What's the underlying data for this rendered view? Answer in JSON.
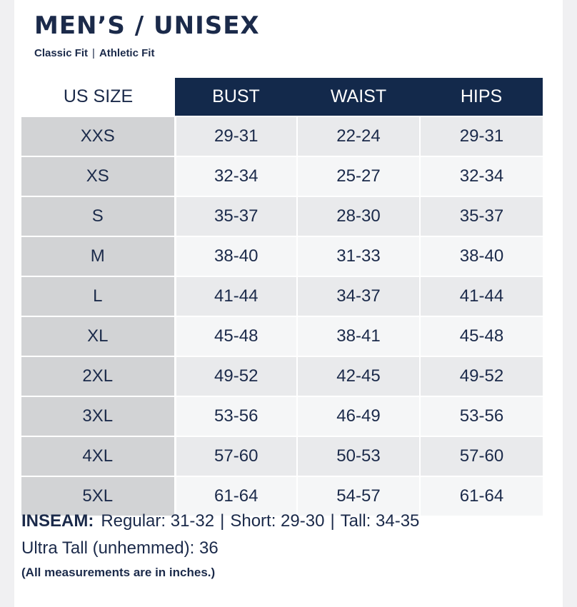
{
  "title": "MEN’S / UNISEX",
  "fits": [
    "Classic Fit",
    "Athletic Fit"
  ],
  "fit_separator": "|",
  "colors": {
    "header_navy": "#13294b",
    "text_navy": "#1b2a4a",
    "size_column": "#d2d3d5",
    "row_shade_dark": "#e9eaec",
    "row_shade_light": "#f5f6f7"
  },
  "table": {
    "headers": [
      "US SIZE",
      "BUST",
      "WAIST",
      "HIPS"
    ],
    "rows": [
      [
        "XXS",
        "29-31",
        "22-24",
        "29-31"
      ],
      [
        "XS",
        "32-34",
        "25-27",
        "32-34"
      ],
      [
        "S",
        "35-37",
        "28-30",
        "35-37"
      ],
      [
        "M",
        "38-40",
        "31-33",
        "38-40"
      ],
      [
        "L",
        "41-44",
        "34-37",
        "41-44"
      ],
      [
        "XL",
        "45-48",
        "38-41",
        "45-48"
      ],
      [
        "2XL",
        "49-52",
        "42-45",
        "49-52"
      ],
      [
        "3XL",
        "53-56",
        "46-49",
        "53-56"
      ],
      [
        "4XL",
        "57-60",
        "50-53",
        "57-60"
      ],
      [
        "5XL",
        "61-64",
        "54-57",
        "61-64"
      ]
    ]
  },
  "inseam": {
    "label": "INSEAM:",
    "items": [
      "Regular: 31-32",
      "Short: 29-30",
      "Tall: 34-35"
    ],
    "separator": "|"
  },
  "ultra_tall": "Ultra Tall (unhemmed): 36",
  "note": "(All measurements are in inches.)"
}
